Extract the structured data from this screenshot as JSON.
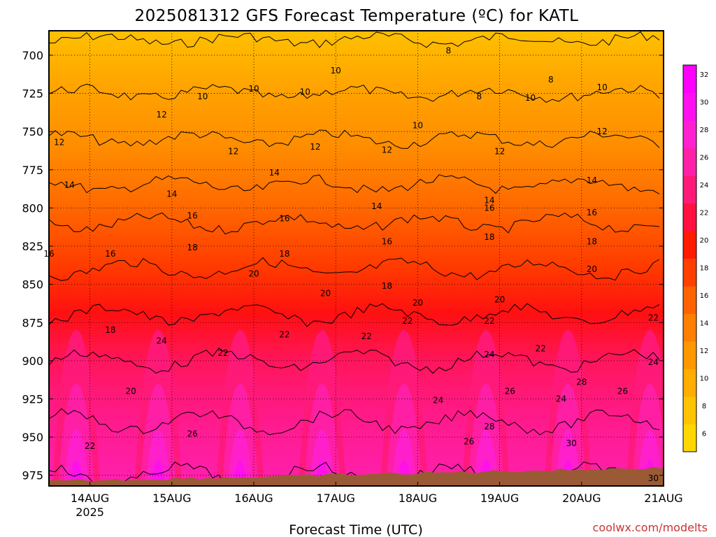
{
  "chart_data": {
    "type": "heatmap",
    "title": "2025081312 GFS Forecast Temperature (ºC) for KATL",
    "xlabel": "Forecast Time (UTC)",
    "ylabel": "",
    "credit": "coolwx.com/modelts",
    "y_axis": {
      "inverted": true,
      "range": [
        982,
        684
      ],
      "ticks": [
        700,
        725,
        750,
        775,
        800,
        825,
        850,
        875,
        900,
        925,
        950,
        975
      ]
    },
    "x_axis": {
      "range": [
        "2025-08-13T12:00Z",
        "2025-08-21T00:00Z"
      ],
      "ticks": [
        {
          "date": "2025-08-14",
          "label": "14AUG",
          "sublabel": "2025"
        },
        {
          "date": "2025-08-15",
          "label": "15AUG",
          "sublabel": ""
        },
        {
          "date": "2025-08-16",
          "label": "16AUG",
          "sublabel": ""
        },
        {
          "date": "2025-08-17",
          "label": "17AUG",
          "sublabel": ""
        },
        {
          "date": "2025-08-18",
          "label": "18AUG",
          "sublabel": ""
        },
        {
          "date": "2025-08-19",
          "label": "19AUG",
          "sublabel": ""
        },
        {
          "date": "2025-08-20",
          "label": "20AUG",
          "sublabel": ""
        },
        {
          "date": "2025-08-21",
          "label": "21AUG",
          "sublabel": ""
        }
      ]
    },
    "grid": true,
    "colorbar": {
      "ticks": [
        6,
        8,
        10,
        12,
        14,
        16,
        18,
        20,
        22,
        24,
        26,
        28,
        30,
        32
      ],
      "colors": [
        "#ffd700",
        "#ffc300",
        "#ffad00",
        "#ff9700",
        "#ff7f00",
        "#ff6200",
        "#ff4000",
        "#ff1a00",
        "#ff1040",
        "#ff1a78",
        "#ff20a8",
        "#ff20d0",
        "#ff10f0",
        "#ff00ff"
      ]
    },
    "contour_levels": [
      8,
      10,
      12,
      14,
      16,
      18,
      20,
      22,
      24,
      26,
      28,
      30
    ],
    "temperature_profile_approx": [
      {
        "pressure": 690,
        "temp": 8
      },
      {
        "pressure": 725,
        "temp": 10
      },
      {
        "pressure": 755,
        "temp": 12
      },
      {
        "pressure": 785,
        "temp": 14
      },
      {
        "pressure": 810,
        "temp": 16
      },
      {
        "pressure": 840,
        "temp": 18
      },
      {
        "pressure": 870,
        "temp": 20
      },
      {
        "pressure": 900,
        "temp": 22
      },
      {
        "pressure": 940,
        "temp": 24
      },
      {
        "pressure": 975,
        "temp": 26
      }
    ],
    "contour_labels": [
      {
        "value": "8",
        "time": "2025-08-18T09:00Z",
        "pressure": 697
      },
      {
        "value": "8",
        "time": "2025-08-19T15:00Z",
        "pressure": 716
      },
      {
        "value": "8",
        "time": "2025-08-18T18:00Z",
        "pressure": 727
      },
      {
        "value": "10",
        "time": "2025-08-17T00:00Z",
        "pressure": 710
      },
      {
        "value": "10",
        "time": "2025-08-16T00:00Z",
        "pressure": 722
      },
      {
        "value": "10",
        "time": "2025-08-15T09:00Z",
        "pressure": 727
      },
      {
        "value": "10",
        "time": "2025-08-16T15:00Z",
        "pressure": 724
      },
      {
        "value": "10",
        "time": "2025-08-18T00:00Z",
        "pressure": 746
      },
      {
        "value": "10",
        "time": "2025-08-19T09:00Z",
        "pressure": 728
      },
      {
        "value": "10",
        "time": "2025-08-20T06:00Z",
        "pressure": 721
      },
      {
        "value": "12",
        "time": "2025-08-14T21:00Z",
        "pressure": 739
      },
      {
        "value": "12",
        "time": "2025-08-13T15:00Z",
        "pressure": 757
      },
      {
        "value": "12",
        "time": "2025-08-15T18:00Z",
        "pressure": 763
      },
      {
        "value": "12",
        "time": "2025-08-16T18:00Z",
        "pressure": 760
      },
      {
        "value": "12",
        "time": "2025-08-17T15:00Z",
        "pressure": 762
      },
      {
        "value": "12",
        "time": "2025-08-19T00:00Z",
        "pressure": 763
      },
      {
        "value": "12",
        "time": "2025-08-20T06:00Z",
        "pressure": 750
      },
      {
        "value": "14",
        "time": "2025-08-13T18:00Z",
        "pressure": 785
      },
      {
        "value": "14",
        "time": "2025-08-15T00:00Z",
        "pressure": 791
      },
      {
        "value": "14",
        "time": "2025-08-16T06:00Z",
        "pressure": 777
      },
      {
        "value": "14",
        "time": "2025-08-17T12:00Z",
        "pressure": 799
      },
      {
        "value": "14",
        "time": "2025-08-18T21:00Z",
        "pressure": 795
      },
      {
        "value": "14",
        "time": "2025-08-20T03:00Z",
        "pressure": 782
      },
      {
        "value": "16",
        "time": "2025-08-13T12:00Z",
        "pressure": 830
      },
      {
        "value": "16",
        "time": "2025-08-14T06:00Z",
        "pressure": 830
      },
      {
        "value": "16",
        "time": "2025-08-15T06:00Z",
        "pressure": 805
      },
      {
        "value": "16",
        "time": "2025-08-16T09:00Z",
        "pressure": 807
      },
      {
        "value": "16",
        "time": "2025-08-17T15:00Z",
        "pressure": 822
      },
      {
        "value": "16",
        "time": "2025-08-18T21:00Z",
        "pressure": 800
      },
      {
        "value": "16",
        "time": "2025-08-20T03:00Z",
        "pressure": 803
      },
      {
        "value": "18",
        "time": "2025-08-15T06:00Z",
        "pressure": 826
      },
      {
        "value": "18",
        "time": "2025-08-16T09:00Z",
        "pressure": 830
      },
      {
        "value": "18",
        "time": "2025-08-17T15:00Z",
        "pressure": 851
      },
      {
        "value": "18",
        "time": "2025-08-18T21:00Z",
        "pressure": 819
      },
      {
        "value": "18",
        "time": "2025-08-20T03:00Z",
        "pressure": 822
      },
      {
        "value": "18",
        "time": "2025-08-14T06:00Z",
        "pressure": 880
      },
      {
        "value": "20",
        "time": "2025-08-16T00:00Z",
        "pressure": 843
      },
      {
        "value": "20",
        "time": "2025-08-16T21:00Z",
        "pressure": 856
      },
      {
        "value": "20",
        "time": "2025-08-18T00:00Z",
        "pressure": 862
      },
      {
        "value": "20",
        "time": "2025-08-19T00:00Z",
        "pressure": 860
      },
      {
        "value": "20",
        "time": "2025-08-20T03:00Z",
        "pressure": 840
      },
      {
        "value": "20",
        "time": "2025-08-14T12:00Z",
        "pressure": 920
      },
      {
        "value": "22",
        "time": "2025-08-15T15:00Z",
        "pressure": 895
      },
      {
        "value": "22",
        "time": "2025-08-16T09:00Z",
        "pressure": 883
      },
      {
        "value": "22",
        "time": "2025-08-17T09:00Z",
        "pressure": 884
      },
      {
        "value": "22",
        "time": "2025-08-17T21:00Z",
        "pressure": 874
      },
      {
        "value": "22",
        "time": "2025-08-18T21:00Z",
        "pressure": 874
      },
      {
        "value": "22",
        "time": "2025-08-19T12:00Z",
        "pressure": 892
      },
      {
        "value": "22",
        "time": "2025-08-20T21:00Z",
        "pressure": 872
      },
      {
        "value": "22",
        "time": "2025-08-14T00:00Z",
        "pressure": 956
      },
      {
        "value": "24",
        "time": "2025-08-14T21:00Z",
        "pressure": 887
      },
      {
        "value": "24",
        "time": "2025-08-18T21:00Z",
        "pressure": 896
      },
      {
        "value": "24",
        "time": "2025-08-18T06:00Z",
        "pressure": 926
      },
      {
        "value": "24",
        "time": "2025-08-19T18:00Z",
        "pressure": 925
      },
      {
        "value": "24",
        "time": "2025-08-20T21:00Z",
        "pressure": 901
      },
      {
        "value": "26",
        "time": "2025-08-15T06:00Z",
        "pressure": 948
      },
      {
        "value": "26",
        "time": "2025-08-19T03:00Z",
        "pressure": 920
      },
      {
        "value": "26",
        "time": "2025-08-20T12:00Z",
        "pressure": 920
      },
      {
        "value": "26",
        "time": "2025-08-18T15:00Z",
        "pressure": 953
      },
      {
        "value": "28",
        "time": "2025-08-18T21:00Z",
        "pressure": 943
      },
      {
        "value": "28",
        "time": "2025-08-20T00:00Z",
        "pressure": 914
      },
      {
        "value": "30",
        "time": "2025-08-19T21:00Z",
        "pressure": 954
      },
      {
        "value": "30",
        "time": "2025-08-20T21:00Z",
        "pressure": 977
      }
    ]
  }
}
